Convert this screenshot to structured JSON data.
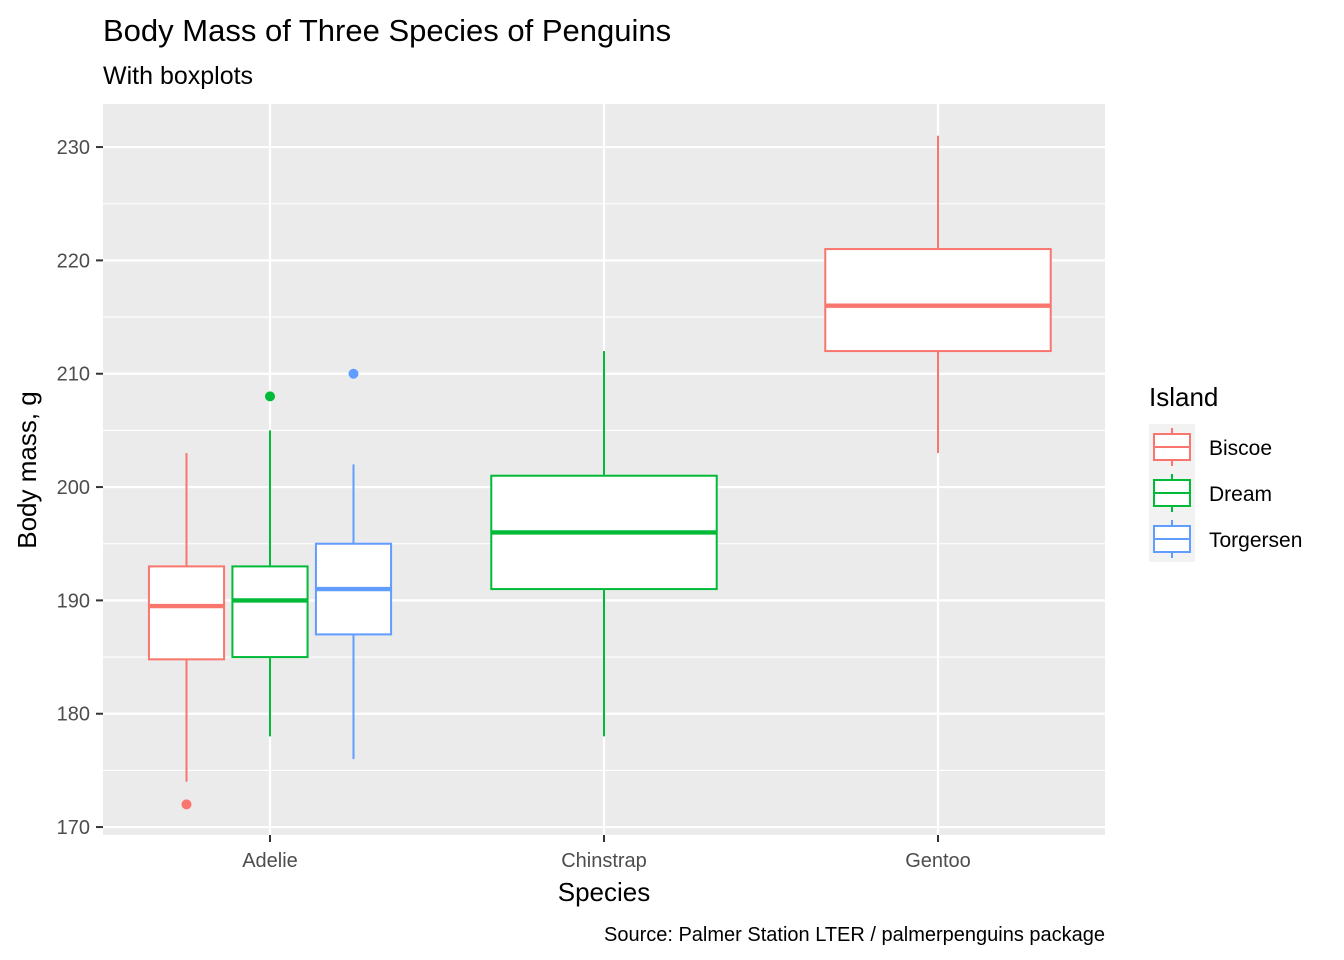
{
  "chart_data": {
    "type": "boxplot",
    "title": "Body Mass of Three Species of Penguins",
    "subtitle": "With boxplots",
    "xlabel": "Species",
    "ylabel": "Body mass, g",
    "caption": "Source: Palmer Station LTER / palmerpenguins package",
    "categories": [
      "Adelie",
      "Chinstrap",
      "Gentoo"
    ],
    "ylim": [
      169.3,
      233.8
    ],
    "yticks": [
      170,
      180,
      190,
      200,
      210,
      220,
      230
    ],
    "grid": true,
    "legend": {
      "title": "Island",
      "position": "right"
    },
    "series": [
      {
        "name": "Biscoe",
        "color": "#F8766D",
        "boxes": [
          {
            "category": "Adelie",
            "whisker_low": 174,
            "q1": 184.8,
            "median": 189.5,
            "q3": 193,
            "whisker_high": 203,
            "outliers": [
              172
            ]
          },
          {
            "category": "Gentoo",
            "whisker_low": 203,
            "q1": 212,
            "median": 216,
            "q3": 221,
            "whisker_high": 231,
            "outliers": []
          }
        ]
      },
      {
        "name": "Dream",
        "color": "#00BA38",
        "boxes": [
          {
            "category": "Adelie",
            "whisker_low": 178,
            "q1": 185,
            "median": 190,
            "q3": 193,
            "whisker_high": 205,
            "outliers": [
              208
            ]
          },
          {
            "category": "Chinstrap",
            "whisker_low": 178,
            "q1": 191,
            "median": 196,
            "q3": 201,
            "whisker_high": 212,
            "outliers": []
          }
        ]
      },
      {
        "name": "Torgersen",
        "color": "#619CFF",
        "boxes": [
          {
            "category": "Adelie",
            "whisker_low": 176,
            "q1": 187,
            "median": 191,
            "q3": 195,
            "whisker_high": 202,
            "outliers": [
              210
            ]
          }
        ]
      }
    ]
  }
}
